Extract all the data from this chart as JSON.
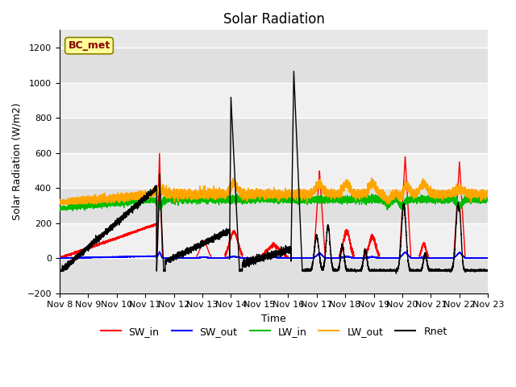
{
  "title": "Solar Radiation",
  "ylabel": "Solar Radiation (W/m2)",
  "xlabel": "Time",
  "ylim": [
    -200,
    1300
  ],
  "yticks": [
    -200,
    0,
    200,
    400,
    600,
    800,
    1000,
    1200
  ],
  "xtick_labels": [
    "Nov 8",
    "Nov 9",
    "Nov 10",
    "Nov 11",
    "Nov 12",
    "Nov 13",
    "Nov 14",
    "Nov 15",
    "Nov 16",
    "Nov 17",
    "Nov 18",
    "Nov 19",
    "Nov 20",
    "Nov 21",
    "Nov 22",
    "Nov 23"
  ],
  "annotation_text": "BC_met",
  "annotation_color": "#8B0000",
  "annotation_bg": "#FFFF99",
  "annotation_edge": "#8B8000",
  "colors": {
    "SW_in": "#FF0000",
    "SW_out": "#0000FF",
    "LW_in": "#00BB00",
    "LW_out": "#FFA500",
    "Rnet": "#000000"
  },
  "bg_color": "#E8E8E8",
  "band_color_light": "#F0F0F0",
  "band_color_dark": "#E0E0E0",
  "grid_color": "#FFFFFF",
  "title_fontsize": 12,
  "label_fontsize": 9,
  "tick_fontsize": 8,
  "legend_fontsize": 9
}
